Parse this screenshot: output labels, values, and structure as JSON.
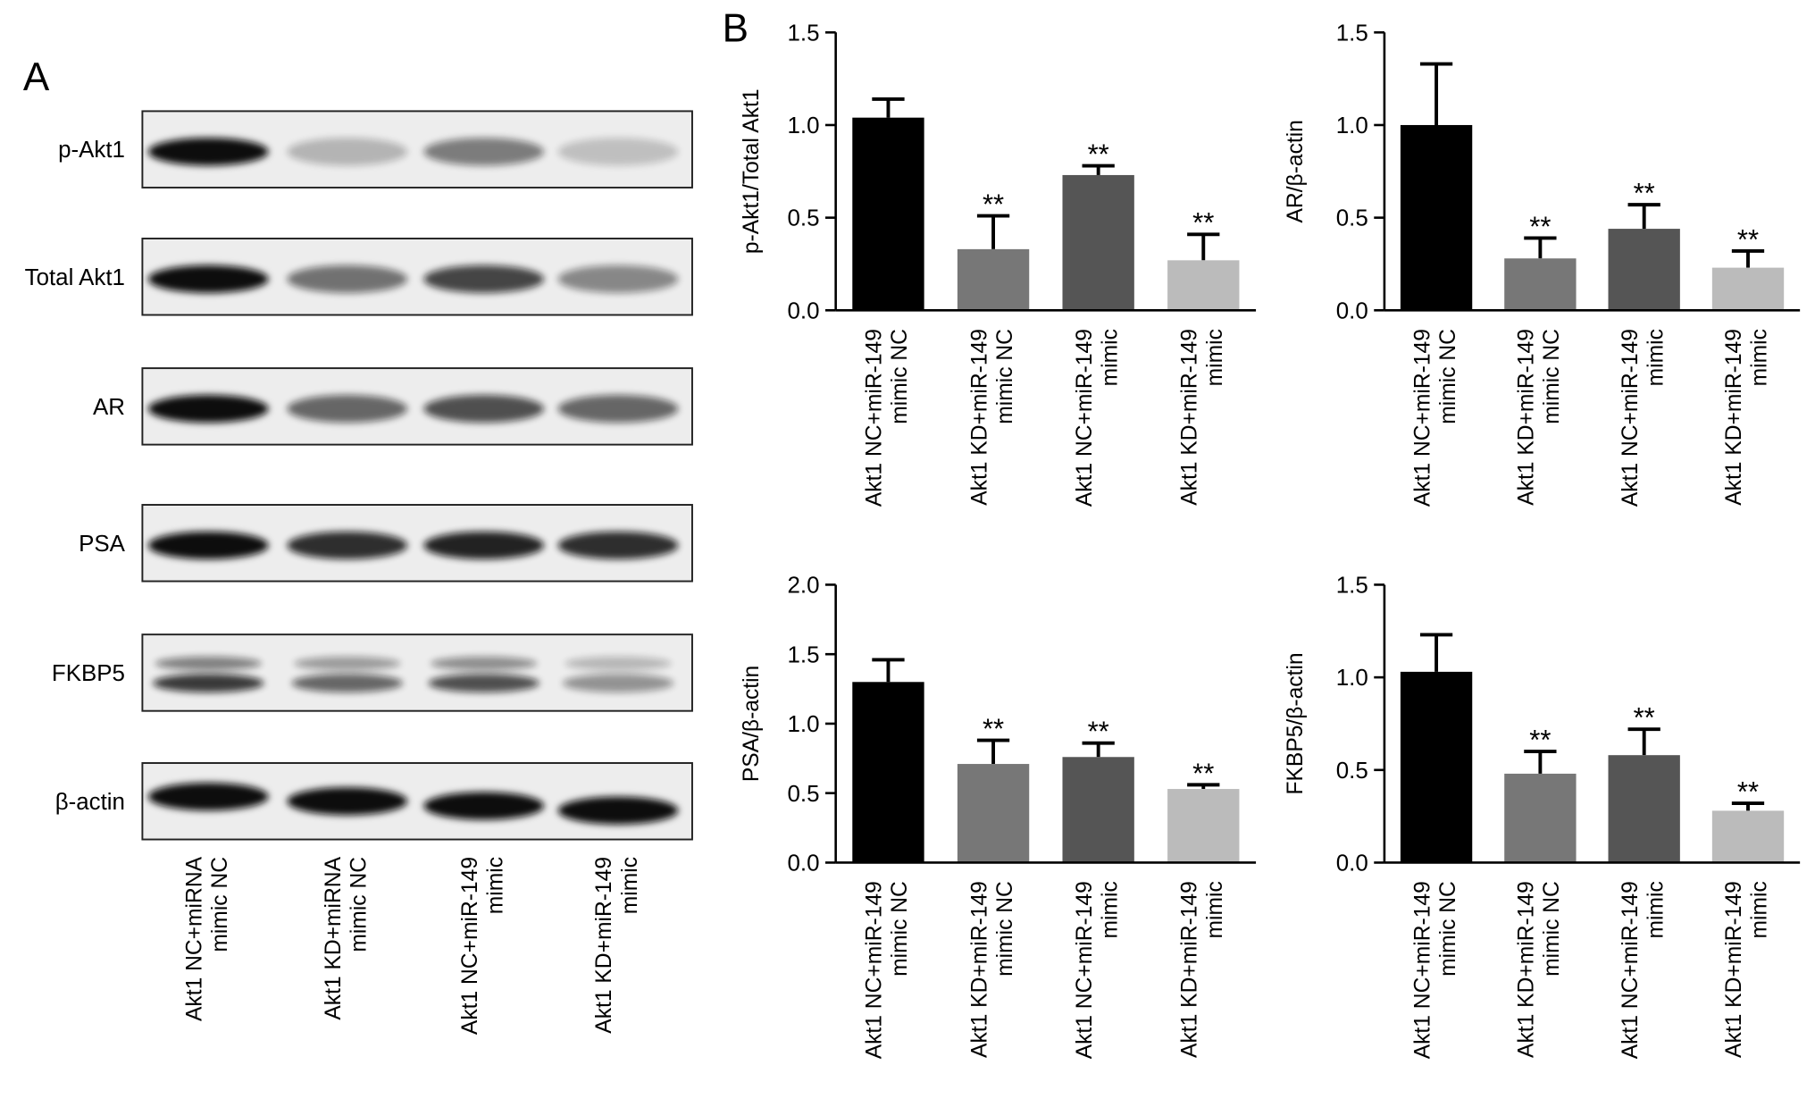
{
  "panels": {
    "a": "A",
    "b": "B"
  },
  "blot": {
    "rows": [
      "p-Akt1",
      "Total Akt1",
      "AR",
      "PSA",
      "FKBP5",
      "β-actin"
    ],
    "lanes": [
      "Akt1 NC+miRNA\nmimic NC",
      "Akt1 KD+miRNA\nmimic NC",
      "Akt1 NC+miR-149\nmimic",
      "Akt1 KD+miR-149\nmimic"
    ]
  },
  "chart_data": [
    {
      "type": "bar",
      "y_label": "p-Akt1/Total Akt1",
      "categories": [
        "Akt1 NC+miR-149\nmimic NC",
        "Akt1 KD+miR-149\nmimic NC",
        "Akt1 NC+miR-149\nmimic",
        "Akt1 KD+miR-149\nmimic"
      ],
      "values": [
        1.04,
        0.33,
        0.73,
        0.27
      ],
      "errors": [
        0.1,
        0.18,
        0.05,
        0.14
      ],
      "annotations": [
        null,
        "**",
        "**",
        "**"
      ],
      "colors": [
        "#000000",
        "#777777",
        "#555555",
        "#bbbbbb"
      ],
      "ylim": [
        0,
        1.5
      ],
      "yticks": [
        {
          "value": 0,
          "label": "0.0"
        },
        {
          "value": 0.5,
          "label": "0.5"
        },
        {
          "value": 1,
          "label": "1.0"
        },
        {
          "value": 1.5,
          "label": "1.5"
        }
      ]
    },
    {
      "type": "bar",
      "y_label": "AR/β-actin",
      "categories": [
        "Akt1 NC+miR-149\nmimic NC",
        "Akt1 KD+miR-149\nmimic NC",
        "Akt1 NC+miR-149\nmimic",
        "Akt1 KD+miR-149\nmimic"
      ],
      "values": [
        1.0,
        0.28,
        0.44,
        0.23
      ],
      "errors": [
        0.33,
        0.11,
        0.13,
        0.09
      ],
      "annotations": [
        null,
        "**",
        "**",
        "**"
      ],
      "colors": [
        "#000000",
        "#777777",
        "#555555",
        "#bbbbbb"
      ],
      "ylim": [
        0,
        1.5
      ],
      "yticks": [
        {
          "value": 0,
          "label": "0.0"
        },
        {
          "value": 0.5,
          "label": "0.5"
        },
        {
          "value": 1,
          "label": "1.0"
        },
        {
          "value": 1.5,
          "label": "1.5"
        }
      ]
    },
    {
      "type": "bar",
      "y_label": "PSA/β-actin",
      "categories": [
        "Akt1 NC+miR-149\nmimic NC",
        "Akt1 KD+miR-149\nmimic NC",
        "Akt1 NC+miR-149\nmimic",
        "Akt1 KD+miR-149\nmimic"
      ],
      "values": [
        1.3,
        0.71,
        0.76,
        0.53
      ],
      "errors": [
        0.16,
        0.17,
        0.1,
        0.03
      ],
      "annotations": [
        null,
        "**",
        "**",
        "**"
      ],
      "colors": [
        "#000000",
        "#777777",
        "#555555",
        "#bbbbbb"
      ],
      "ylim": [
        0,
        2
      ],
      "yticks": [
        {
          "value": 0,
          "label": "0.0"
        },
        {
          "value": 0.5,
          "label": "0.5"
        },
        {
          "value": 1,
          "label": "1.0"
        },
        {
          "value": 1.5,
          "label": "1.5"
        },
        {
          "value": 2,
          "label": "2.0"
        }
      ]
    },
    {
      "type": "bar",
      "y_label": "FKBP5/β-actin",
      "categories": [
        "Akt1 NC+miR-149\nmimic NC",
        "Akt1 KD+miR-149\nmimic NC",
        "Akt1 NC+miR-149\nmimic",
        "Akt1 KD+miR-149\nmimic"
      ],
      "values": [
        1.03,
        0.48,
        0.58,
        0.28
      ],
      "errors": [
        0.2,
        0.12,
        0.14,
        0.04
      ],
      "annotations": [
        null,
        "**",
        "**",
        "**"
      ],
      "colors": [
        "#000000",
        "#777777",
        "#555555",
        "#bbbbbb"
      ],
      "ylim": [
        0,
        1.5
      ],
      "yticks": [
        {
          "value": 0,
          "label": "0.0"
        },
        {
          "value": 0.5,
          "label": "0.5"
        },
        {
          "value": 1,
          "label": "1.0"
        },
        {
          "value": 1.5,
          "label": "1.5"
        }
      ]
    }
  ]
}
